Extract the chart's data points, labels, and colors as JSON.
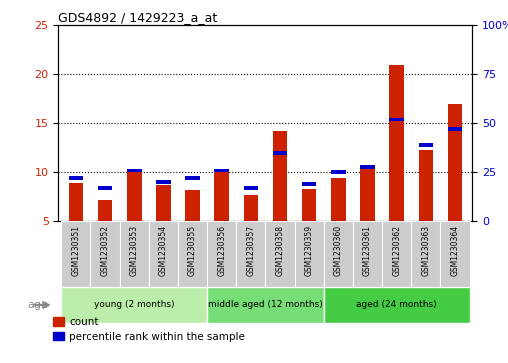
{
  "title": "GDS4892 / 1429223_a_at",
  "samples": [
    "GSM1230351",
    "GSM1230352",
    "GSM1230353",
    "GSM1230354",
    "GSM1230355",
    "GSM1230356",
    "GSM1230357",
    "GSM1230358",
    "GSM1230359",
    "GSM1230360",
    "GSM1230361",
    "GSM1230362",
    "GSM1230363",
    "GSM1230364"
  ],
  "count_values": [
    8.9,
    7.2,
    10.0,
    8.7,
    8.2,
    10.0,
    7.7,
    14.2,
    8.3,
    9.4,
    10.8,
    21.0,
    12.3,
    17.0
  ],
  "percentile_values": [
    22,
    17,
    26,
    20,
    22,
    26,
    17,
    35,
    19,
    25,
    28,
    52,
    39,
    47
  ],
  "bar_color": "#cc2200",
  "percentile_color": "#0000cc",
  "ylim_left": [
    5,
    25
  ],
  "ylim_right": [
    0,
    100
  ],
  "yticks_left": [
    5,
    10,
    15,
    20,
    25
  ],
  "yticks_right": [
    0,
    25,
    50,
    75,
    100
  ],
  "group_labels": [
    "young (2 months)",
    "middle aged (12 months)",
    "aged (24 months)"
  ],
  "group_colors": [
    "#bbeeaa",
    "#77dd77",
    "#44cc44"
  ],
  "group_starts": [
    0,
    5,
    9
  ],
  "group_ends": [
    5,
    9,
    14
  ],
  "age_label": "age",
  "legend_count": "count",
  "legend_percentile": "percentile rank within the sample",
  "background_color": "#ffffff",
  "sample_box_color": "#cccccc",
  "bar_width": 0.5,
  "bar_bottom": 5,
  "gridlines": [
    10,
    15,
    20
  ],
  "pct_bar_height": 0.4
}
